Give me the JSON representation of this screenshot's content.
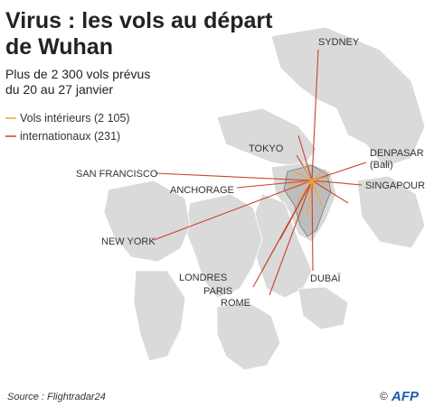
{
  "header": {
    "title": [
      "Virus : les vols au départ",
      "de Wuhan"
    ],
    "subtitle": [
      "Plus de 2 300 vols prévus",
      "du 20 au 27 janvier"
    ]
  },
  "legend": [
    {
      "label": "Vols intérieurs (2 105)",
      "color": "#f2a33a"
    },
    {
      "label": "internationaux (231)",
      "color": "#c8432b"
    }
  ],
  "cities": [
    {
      "name": "SYDNEY"
    },
    {
      "name": "TOKYO"
    },
    {
      "name": "DENPASAR",
      "note": "(Bali)"
    },
    {
      "name": "SINGAPOUR"
    },
    {
      "name": "SAN FRANCISCO"
    },
    {
      "name": "ANCHORAGE"
    },
    {
      "name": "NEW YORK"
    },
    {
      "name": "LONDRES"
    },
    {
      "name": "PARIS"
    },
    {
      "name": "ROME"
    },
    {
      "name": "DUBAÏ"
    }
  ],
  "source": "Source : Flightradar24",
  "credit": {
    "copyright": "©",
    "logo": "AFP"
  }
}
